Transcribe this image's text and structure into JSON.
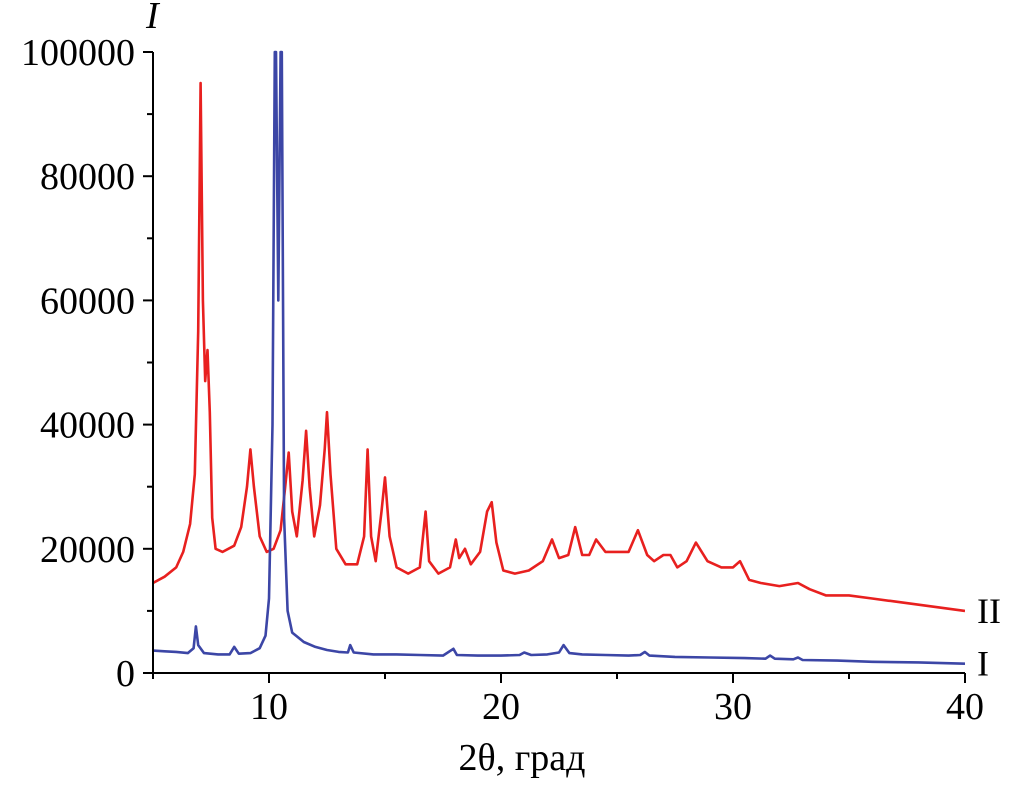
{
  "chart_data": {
    "type": "line",
    "xlabel": "2θ, град",
    "ylabel": "I",
    "xlim": [
      5,
      40
    ],
    "ylim": [
      0,
      100000
    ],
    "x_ticks": [
      10,
      20,
      30,
      40
    ],
    "y_ticks": [
      0,
      20000,
      40000,
      60000,
      80000,
      100000
    ],
    "x_tick_labels": [
      "10",
      "20",
      "30",
      "40"
    ],
    "y_tick_labels": [
      "0",
      "20000",
      "40000",
      "60000",
      "80000",
      "100000"
    ],
    "grid": false,
    "series": [
      {
        "name": "II",
        "color": "#e8201f",
        "points": [
          [
            5.0,
            14500
          ],
          [
            5.5,
            15500
          ],
          [
            6.0,
            17000
          ],
          [
            6.3,
            19500
          ],
          [
            6.6,
            24000
          ],
          [
            6.8,
            32000
          ],
          [
            6.95,
            55000
          ],
          [
            7.05,
            95000
          ],
          [
            7.15,
            60000
          ],
          [
            7.25,
            47000
          ],
          [
            7.35,
            52000
          ],
          [
            7.45,
            42000
          ],
          [
            7.55,
            25000
          ],
          [
            7.7,
            20000
          ],
          [
            8.0,
            19500
          ],
          [
            8.5,
            20500
          ],
          [
            8.8,
            23500
          ],
          [
            9.05,
            30000
          ],
          [
            9.2,
            36000
          ],
          [
            9.35,
            30000
          ],
          [
            9.6,
            22000
          ],
          [
            9.9,
            19500
          ],
          [
            10.2,
            20000
          ],
          [
            10.5,
            23000
          ],
          [
            10.7,
            30000
          ],
          [
            10.85,
            35500
          ],
          [
            11.0,
            26000
          ],
          [
            11.2,
            22000
          ],
          [
            11.45,
            31000
          ],
          [
            11.6,
            39000
          ],
          [
            11.75,
            30000
          ],
          [
            11.95,
            22000
          ],
          [
            12.2,
            27000
          ],
          [
            12.4,
            36000
          ],
          [
            12.5,
            42000
          ],
          [
            12.65,
            32000
          ],
          [
            12.9,
            20000
          ],
          [
            13.3,
            17500
          ],
          [
            13.8,
            17500
          ],
          [
            14.1,
            22000
          ],
          [
            14.25,
            36000
          ],
          [
            14.4,
            22000
          ],
          [
            14.6,
            18000
          ],
          [
            14.85,
            26000
          ],
          [
            15.0,
            31500
          ],
          [
            15.2,
            22000
          ],
          [
            15.5,
            17000
          ],
          [
            16.0,
            16000
          ],
          [
            16.5,
            17000
          ],
          [
            16.75,
            26000
          ],
          [
            16.9,
            18000
          ],
          [
            17.3,
            16000
          ],
          [
            17.8,
            17000
          ],
          [
            18.05,
            21500
          ],
          [
            18.2,
            18500
          ],
          [
            18.45,
            20000
          ],
          [
            18.7,
            17500
          ],
          [
            19.1,
            19500
          ],
          [
            19.4,
            26000
          ],
          [
            19.6,
            27500
          ],
          [
            19.8,
            21000
          ],
          [
            20.1,
            16500
          ],
          [
            20.6,
            16000
          ],
          [
            21.2,
            16500
          ],
          [
            21.8,
            18000
          ],
          [
            22.2,
            21500
          ],
          [
            22.5,
            18500
          ],
          [
            22.9,
            19000
          ],
          [
            23.2,
            23500
          ],
          [
            23.5,
            19000
          ],
          [
            23.8,
            19000
          ],
          [
            24.1,
            21500
          ],
          [
            24.5,
            19500
          ],
          [
            25.0,
            19500
          ],
          [
            25.5,
            19500
          ],
          [
            25.9,
            23000
          ],
          [
            26.3,
            19000
          ],
          [
            26.6,
            18000
          ],
          [
            27.0,
            19000
          ],
          [
            27.3,
            19000
          ],
          [
            27.6,
            17000
          ],
          [
            28.0,
            18000
          ],
          [
            28.4,
            21000
          ],
          [
            28.9,
            18000
          ],
          [
            29.5,
            17000
          ],
          [
            30.0,
            17000
          ],
          [
            30.3,
            18000
          ],
          [
            30.7,
            15000
          ],
          [
            31.2,
            14500
          ],
          [
            32.0,
            14000
          ],
          [
            32.8,
            14500
          ],
          [
            33.3,
            13500
          ],
          [
            34.0,
            12500
          ],
          [
            35.0,
            12500
          ],
          [
            36.0,
            12000
          ],
          [
            37.0,
            11500
          ],
          [
            38.0,
            11000
          ],
          [
            39.0,
            10500
          ],
          [
            40.0,
            10000
          ]
        ]
      },
      {
        "name": "I",
        "color": "#3c46a6",
        "points": [
          [
            5.0,
            3600
          ],
          [
            5.5,
            3500
          ],
          [
            6.0,
            3400
          ],
          [
            6.5,
            3200
          ],
          [
            6.75,
            4000
          ],
          [
            6.85,
            7500
          ],
          [
            6.95,
            4500
          ],
          [
            7.2,
            3200
          ],
          [
            7.8,
            3000
          ],
          [
            8.3,
            3000
          ],
          [
            8.5,
            4200
          ],
          [
            8.7,
            3100
          ],
          [
            9.2,
            3200
          ],
          [
            9.6,
            4000
          ],
          [
            9.85,
            6000
          ],
          [
            10.0,
            12000
          ],
          [
            10.15,
            40000
          ],
          [
            10.25,
            100000
          ],
          [
            10.3,
            100000
          ],
          [
            10.4,
            60000
          ],
          [
            10.5,
            100000
          ],
          [
            10.55,
            100000
          ],
          [
            10.65,
            25000
          ],
          [
            10.8,
            10000
          ],
          [
            11.0,
            6500
          ],
          [
            11.5,
            5000
          ],
          [
            12.0,
            4200
          ],
          [
            12.5,
            3700
          ],
          [
            13.0,
            3400
          ],
          [
            13.4,
            3300
          ],
          [
            13.5,
            4500
          ],
          [
            13.65,
            3300
          ],
          [
            14.5,
            3000
          ],
          [
            15.5,
            3000
          ],
          [
            16.5,
            2900
          ],
          [
            17.5,
            2800
          ],
          [
            17.95,
            3900
          ],
          [
            18.1,
            2900
          ],
          [
            19.0,
            2800
          ],
          [
            20.0,
            2800
          ],
          [
            20.8,
            2900
          ],
          [
            21.0,
            3300
          ],
          [
            21.3,
            2900
          ],
          [
            22.0,
            3000
          ],
          [
            22.5,
            3300
          ],
          [
            22.7,
            4500
          ],
          [
            22.95,
            3200
          ],
          [
            23.5,
            3000
          ],
          [
            24.5,
            2900
          ],
          [
            25.5,
            2800
          ],
          [
            26.0,
            2900
          ],
          [
            26.2,
            3400
          ],
          [
            26.4,
            2800
          ],
          [
            27.5,
            2600
          ],
          [
            29.0,
            2500
          ],
          [
            30.5,
            2400
          ],
          [
            31.4,
            2300
          ],
          [
            31.6,
            2800
          ],
          [
            31.8,
            2300
          ],
          [
            32.6,
            2200
          ],
          [
            32.8,
            2500
          ],
          [
            33.0,
            2100
          ],
          [
            34.5,
            2000
          ],
          [
            36.0,
            1800
          ],
          [
            38.0,
            1700
          ],
          [
            40.0,
            1500
          ]
        ]
      }
    ]
  }
}
